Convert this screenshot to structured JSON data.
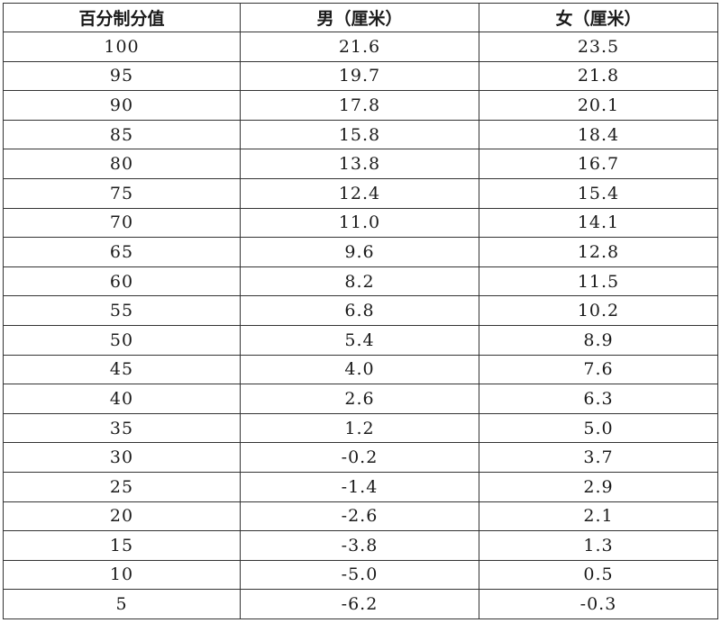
{
  "table": {
    "headers": [
      "百分制分值",
      "男（厘米）",
      "女（厘米）"
    ],
    "rows": [
      [
        "100",
        "21.6",
        "23.5"
      ],
      [
        "95",
        "19.7",
        "21.8"
      ],
      [
        "90",
        "17.8",
        "20.1"
      ],
      [
        "85",
        "15.8",
        "18.4"
      ],
      [
        "80",
        "13.8",
        "16.7"
      ],
      [
        "75",
        "12.4",
        "15.4"
      ],
      [
        "70",
        "11.0",
        "14.1"
      ],
      [
        "65",
        "9.6",
        "12.8"
      ],
      [
        "60",
        "8.2",
        "11.5"
      ],
      [
        "55",
        "6.8",
        "10.2"
      ],
      [
        "50",
        "5.4",
        "8.9"
      ],
      [
        "45",
        "4.0",
        "7.6"
      ],
      [
        "40",
        "2.6",
        "6.3"
      ],
      [
        "35",
        "1.2",
        "5.0"
      ],
      [
        "30",
        "-0.2",
        "3.7"
      ],
      [
        "25",
        "-1.4",
        "2.9"
      ],
      [
        "20",
        "-2.6",
        "2.1"
      ],
      [
        "15",
        "-3.8",
        "1.3"
      ],
      [
        "10",
        "-5.0",
        "0.5"
      ],
      [
        "5",
        "-6.2",
        "-0.3"
      ]
    ]
  }
}
